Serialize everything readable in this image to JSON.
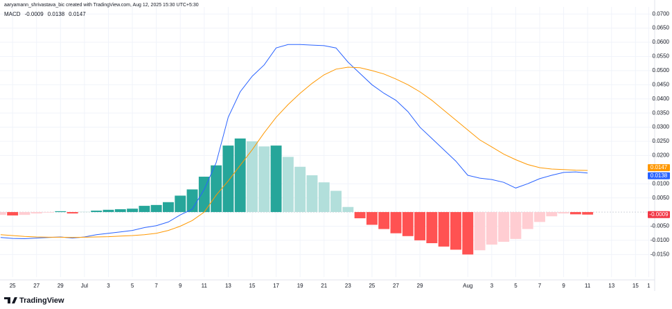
{
  "chart_data": {
    "type": "macd",
    "title": "aaryamann_shrivastava_bic created with TradingView.com, Aug 12, 2025 15:30 UTC+5:30",
    "legend_title": "MACD",
    "logo": "TradingView",
    "xlim": [
      -0.05,
      54.6
    ],
    "ylim": [
      -0.023,
      0.0725
    ],
    "xticks": [
      {
        "value": 1,
        "label": "25"
      },
      {
        "value": 3,
        "label": "27"
      },
      {
        "value": 5,
        "label": "29"
      },
      {
        "value": 7,
        "label": "Jul"
      },
      {
        "value": 9,
        "label": "3"
      },
      {
        "value": 11,
        "label": "5"
      },
      {
        "value": 13,
        "label": "7"
      },
      {
        "value": 15,
        "label": "9"
      },
      {
        "value": 17,
        "label": "11"
      },
      {
        "value": 19,
        "label": "13"
      },
      {
        "value": 21,
        "label": "15"
      },
      {
        "value": 23,
        "label": "17"
      },
      {
        "value": 25,
        "label": "19"
      },
      {
        "value": 27,
        "label": "21"
      },
      {
        "value": 29,
        "label": "23"
      },
      {
        "value": 31,
        "label": "25"
      },
      {
        "value": 33,
        "label": "27"
      },
      {
        "value": 35,
        "label": "29"
      },
      {
        "value": 39,
        "label": "Aug"
      },
      {
        "value": 41,
        "label": "3"
      },
      {
        "value": 43,
        "label": "5"
      },
      {
        "value": 45,
        "label": "7"
      },
      {
        "value": 47,
        "label": "9"
      },
      {
        "value": 49,
        "label": "11"
      },
      {
        "value": 51,
        "label": "13"
      },
      {
        "value": 53,
        "label": "15"
      },
      {
        "value": 54.1,
        "label": "1"
      }
    ],
    "yticks": [
      {
        "value": 0.07,
        "label": "0.0700"
      },
      {
        "value": 0.065,
        "label": "0.0650"
      },
      {
        "value": 0.06,
        "label": "0.0600"
      },
      {
        "value": 0.055,
        "label": "0.0550"
      },
      {
        "value": 0.05,
        "label": "0.0500"
      },
      {
        "value": 0.045,
        "label": "0.0450"
      },
      {
        "value": 0.04,
        "label": "0.0400"
      },
      {
        "value": 0.035,
        "label": "0.0350"
      },
      {
        "value": 0.03,
        "label": "0.0300"
      },
      {
        "value": 0.025,
        "label": "0.0250"
      },
      {
        "value": 0.02,
        "label": "0.0200"
      },
      {
        "value": 0.01,
        "label": "0.0100"
      },
      {
        "value": 0.005,
        "label": "0.0050"
      },
      {
        "value": -0.005,
        "label": "-0.0050"
      },
      {
        "value": -0.01,
        "label": "-0.0100"
      },
      {
        "value": -0.015,
        "label": "-0.0150"
      }
    ],
    "grid": true,
    "series": [
      {
        "kind": "bar",
        "color": "#f23645",
        "last_label": "-0.0009",
        "values": [
          -0.001,
          -0.0012,
          -0.001,
          -0.0005,
          -0.0002,
          0.0003,
          -0.0005,
          0.0001,
          0.0005,
          0.0008,
          0.001,
          0.0012,
          0.0022,
          0.0025,
          0.0035,
          0.0058,
          0.008,
          0.0125,
          0.0165,
          0.0235,
          0.026,
          0.025,
          0.0232,
          0.0235,
          0.0195,
          0.016,
          0.013,
          0.0105,
          0.0075,
          0.0018,
          -0.0022,
          -0.0045,
          -0.006,
          -0.0075,
          -0.0085,
          -0.01,
          -0.011,
          -0.0122,
          -0.0133,
          -0.015,
          -0.0135,
          -0.0115,
          -0.0105,
          -0.0095,
          -0.006,
          -0.0035,
          -0.0015,
          -0.0005,
          -0.0008,
          -0.0009
        ],
        "colors": [
          "#ffcdd2",
          "#ff5252",
          "#ffcdd2",
          "#ffcdd2",
          "#ffcdd2",
          "#26a69a",
          "#ff5252",
          "#b2dfdb",
          "#26a69a",
          "#26a69a",
          "#26a69a",
          "#26a69a",
          "#26a69a",
          "#26a69a",
          "#26a69a",
          "#26a69a",
          "#26a69a",
          "#26a69a",
          "#26a69a",
          "#26a69a",
          "#26a69a",
          "#b2dfdb",
          "#b2dfdb",
          "#26a69a",
          "#b2dfdb",
          "#b2dfdb",
          "#b2dfdb",
          "#b2dfdb",
          "#b2dfdb",
          "#b2dfdb",
          "#ff5252",
          "#ff5252",
          "#ff5252",
          "#ff5252",
          "#ff5252",
          "#ff5252",
          "#ff5252",
          "#ff5252",
          "#ff5252",
          "#ff5252",
          "#ffcdd2",
          "#ffcdd2",
          "#ffcdd2",
          "#ffcdd2",
          "#ffcdd2",
          "#ffcdd2",
          "#ffcdd2",
          "#ffcdd2",
          "#ff5252",
          "#ff5252"
        ]
      },
      {
        "kind": "line",
        "color": "#2962ff",
        "last_label": "0.0138",
        "values": [
          -0.009,
          -0.0093,
          -0.0094,
          -0.0092,
          -0.009,
          -0.0088,
          -0.0092,
          -0.0088,
          -0.008,
          -0.0075,
          -0.007,
          -0.0065,
          -0.0055,
          -0.0048,
          -0.0035,
          -0.001,
          0.001,
          0.008,
          0.0175,
          0.0335,
          0.0425,
          0.048,
          0.052,
          0.058,
          0.0592,
          0.0592,
          0.059,
          0.0588,
          0.058,
          0.053,
          0.049,
          0.045,
          0.042,
          0.0395,
          0.0355,
          0.03,
          0.026,
          0.022,
          0.018,
          0.013,
          0.012,
          0.0115,
          0.0105,
          0.0085,
          0.01,
          0.0118,
          0.013,
          0.014,
          0.0142,
          0.0138
        ]
      },
      {
        "kind": "line",
        "color": "#ff9800",
        "last_label": "0.0147",
        "values": [
          -0.008,
          -0.0083,
          -0.0086,
          -0.0088,
          -0.0089,
          -0.0089,
          -0.009,
          -0.0089,
          -0.0088,
          -0.0087,
          -0.0085,
          -0.0083,
          -0.008,
          -0.0075,
          -0.0065,
          -0.005,
          -0.003,
          0.0,
          0.006,
          0.011,
          0.0165,
          0.022,
          0.028,
          0.0335,
          0.038,
          0.042,
          0.0455,
          0.0485,
          0.0505,
          0.0512,
          0.051,
          0.05,
          0.0488,
          0.047,
          0.045,
          0.0425,
          0.0395,
          0.036,
          0.0325,
          0.029,
          0.0255,
          0.023,
          0.0205,
          0.0185,
          0.0168,
          0.0157,
          0.0152,
          0.015,
          0.0148,
          0.0147
        ]
      }
    ]
  }
}
